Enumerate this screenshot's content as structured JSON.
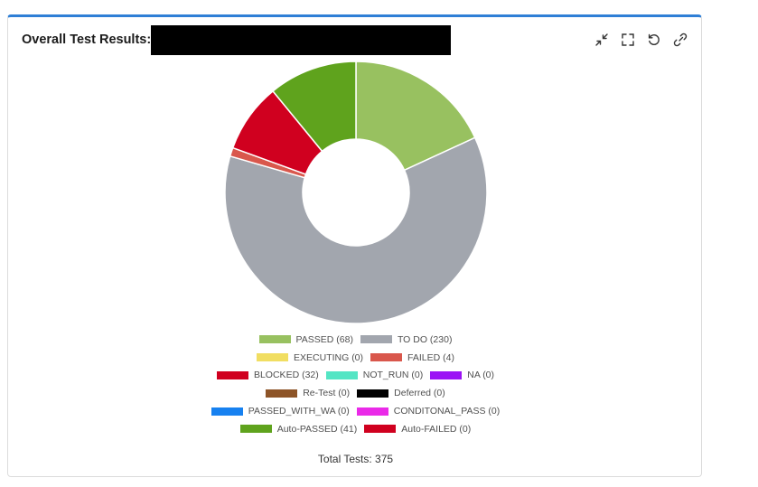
{
  "header": {
    "title": "Overall Test Results:"
  },
  "toolbar": {
    "icons": [
      "collapse-icon",
      "fullscreen-icon",
      "refresh-icon",
      "link-icon"
    ]
  },
  "chart_data": {
    "type": "pie",
    "donut": true,
    "categories": [
      "PASSED",
      "TO DO",
      "EXECUTING",
      "FAILED",
      "BLOCKED",
      "NOT_RUN",
      "NA",
      "Re-Test",
      "Deferred",
      "PASSED_WITH_WA",
      "CONDITONAL_PASS",
      "Auto-PASSED",
      "Auto-FAILED"
    ],
    "values": [
      68,
      230,
      0,
      4,
      32,
      0,
      0,
      0,
      0,
      0,
      0,
      41,
      0
    ],
    "colors": [
      "#98c160",
      "#a2a6ae",
      "#f1de62",
      "#d9574c",
      "#d0001f",
      "#54e5c4",
      "#9b12f5",
      "#8d5427",
      "#000000",
      "#1781f0",
      "#ea2ae8",
      "#5fa31d",
      "#d0001f"
    ],
    "legend_labels": [
      "PASSED (68)",
      "TO DO (230)",
      "EXECUTING (0)",
      "FAILED (4)",
      "BLOCKED (32)",
      "NOT_RUN (0)",
      "NA (0)",
      "Re-Test (0)",
      "Deferred (0)",
      "PASSED_WITH_WA (0)",
      "CONDITONAL_PASS (0)",
      "Auto-PASSED (41)",
      "Auto-FAILED (0)"
    ],
    "legend_position": "bottom",
    "total_label": "Total Tests: 375"
  }
}
